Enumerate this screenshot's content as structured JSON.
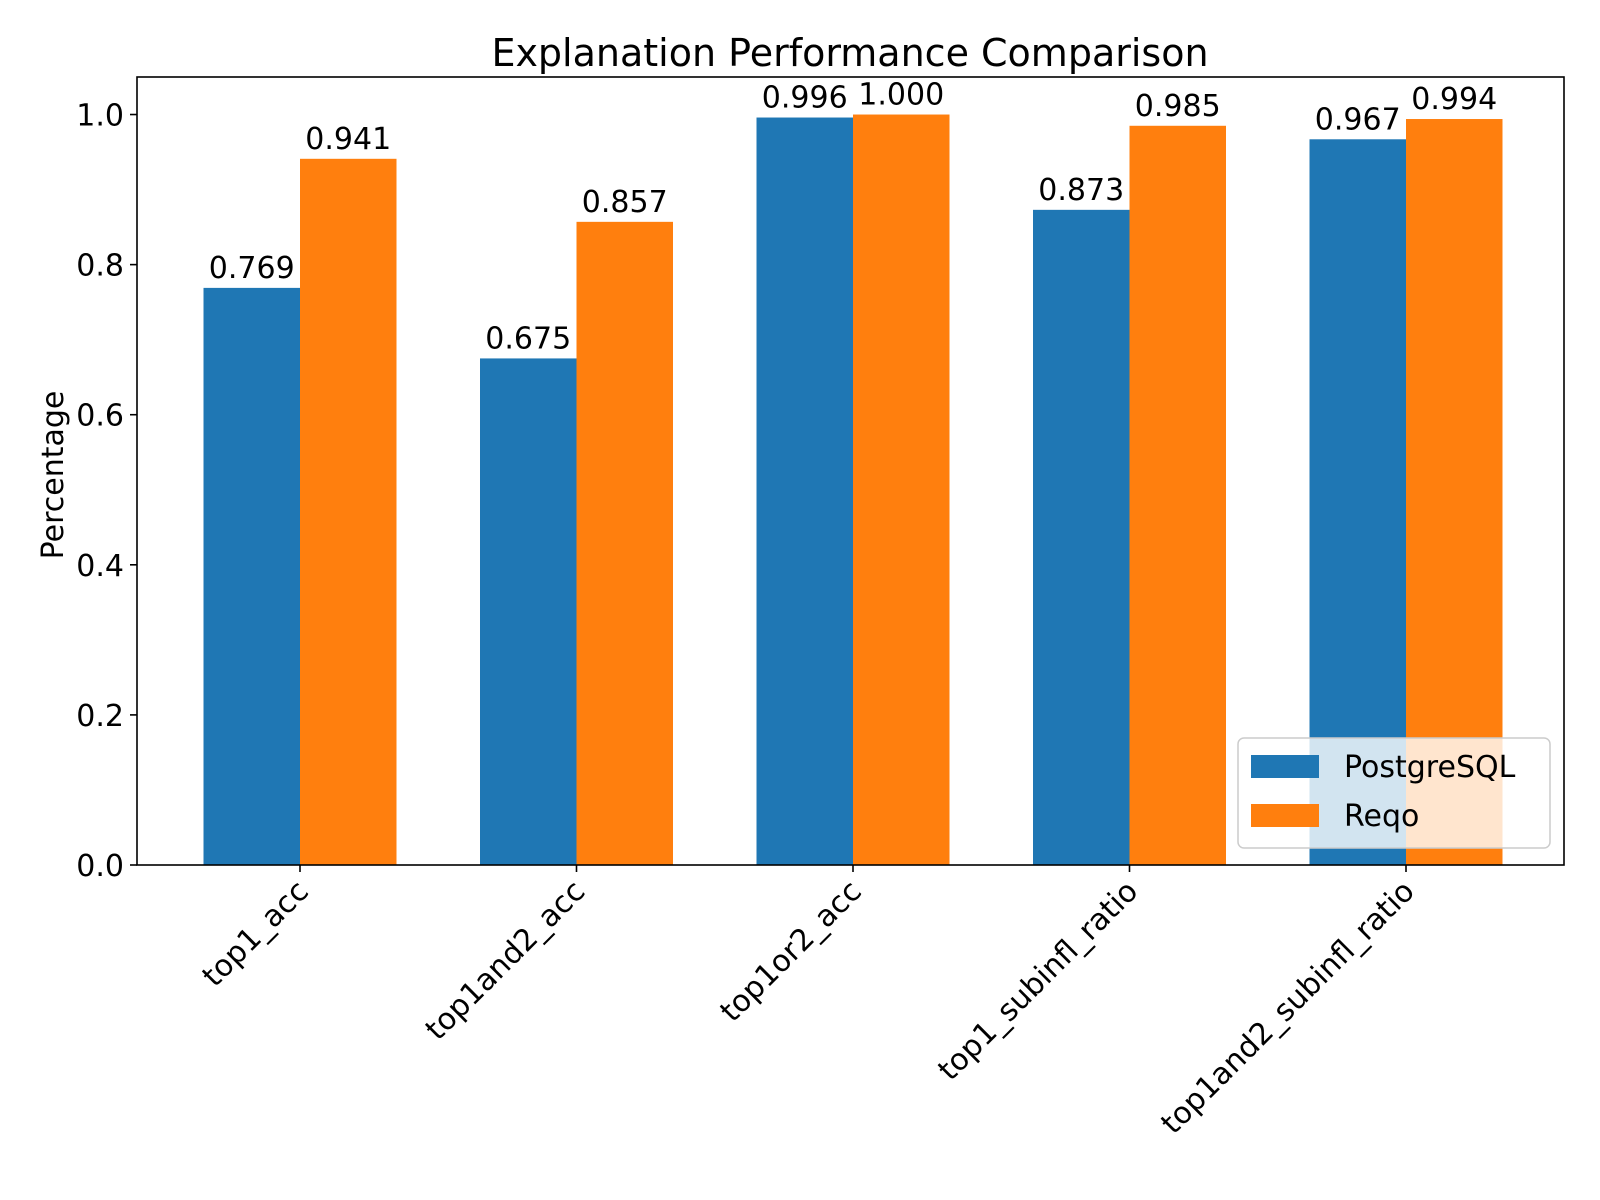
{
  "chart_data": {
    "type": "bar",
    "title": "Explanation Performance Comparison",
    "xlabel": "",
    "ylabel": "Percentage",
    "ylim": [
      0,
      1.05
    ],
    "yticks": [
      0.0,
      0.2,
      0.4,
      0.6,
      0.8,
      1.0
    ],
    "ytick_labels": [
      "0.0",
      "0.2",
      "0.4",
      "0.6",
      "0.8",
      "1.0"
    ],
    "categories": [
      "top1_acc",
      "top1and2_acc",
      "top1or2_acc",
      "top1_subinfl_ratio",
      "top1and2_subinfl_ratio"
    ],
    "series": [
      {
        "name": "PostgreSQL",
        "color": "#1f77b4",
        "values": [
          0.769,
          0.675,
          0.996,
          0.873,
          0.967
        ],
        "labels": [
          "0.769",
          "0.675",
          "0.996",
          "0.873",
          "0.967"
        ]
      },
      {
        "name": "Reqo",
        "color": "#ff7f0e",
        "values": [
          0.941,
          0.857,
          1.0,
          0.985,
          0.994
        ],
        "labels": [
          "0.941",
          "0.857",
          "1.000",
          "0.985",
          "0.994"
        ]
      }
    ],
    "grid": false,
    "legend_position": "lower-right"
  }
}
